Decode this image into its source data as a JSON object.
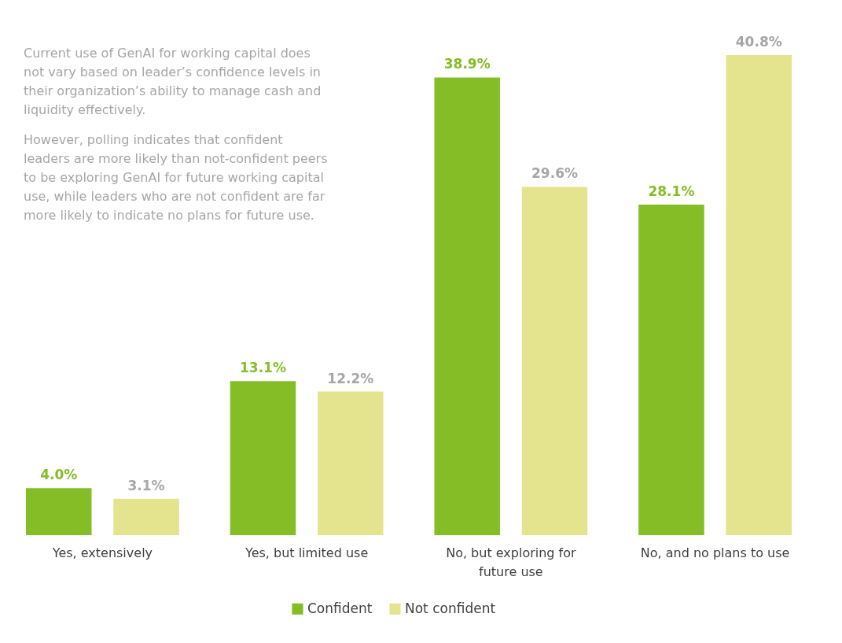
{
  "chart_data": {
    "type": "bar",
    "categories": [
      "Yes, extensively",
      "Yes, but limited use",
      "No, but exploring for future use",
      "No, and no plans to use"
    ],
    "series": [
      {
        "name": "Confident",
        "color": "#84bd26",
        "values": [
          4.0,
          13.1,
          38.9,
          28.1
        ],
        "value_labels": [
          "4.0%",
          "13.1%",
          "38.9%",
          "28.1%"
        ]
      },
      {
        "name": "Not confident",
        "color": "#e4e48e",
        "values": [
          3.1,
          12.2,
          29.6,
          40.8
        ],
        "value_labels": [
          "3.1%",
          "12.2%",
          "29.6%",
          "40.8%"
        ]
      }
    ],
    "tick_labels": "x",
    "legend": "bottom",
    "annotations": [
      "Current use of GenAI for working capital does not vary based on leader’s confidence levels in their organization’s ability to manage cash and liquidity effectively.",
      "However, polling indicates that confident leaders are more likely than not-confident peers to be exploring GenAI for future working capital use, while leaders who are not confident are far more likely to indicate no plans for future use."
    ]
  }
}
